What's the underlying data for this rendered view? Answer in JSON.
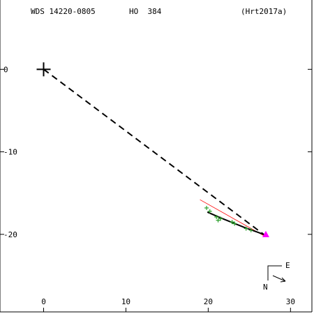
{
  "header": {
    "wds": "WDS 14220-0805",
    "discoverer": "HO  384",
    "reference": "(Hrt2017a)"
  },
  "chart_data": {
    "type": "scatter",
    "title": "",
    "xlabel": "",
    "ylabel": "",
    "xlim": [
      -5.3,
      32.6
    ],
    "ylim": [
      -29.4,
      8.4
    ],
    "x_ticks": [
      0,
      10,
      20,
      30
    ],
    "y_ticks": [
      0,
      -10,
      -20
    ],
    "x_tick_labels": [
      "0",
      "10",
      "20",
      "30"
    ],
    "y_tick_labels": [
      "0",
      "-10",
      "-20"
    ],
    "grid": false,
    "primary": {
      "x": 0,
      "y": 0
    },
    "orbit_path": [
      [
        19.9,
        -17.3
      ],
      [
        21.5,
        -18.0
      ],
      [
        23.0,
        -18.6
      ],
      [
        24.5,
        -19.2
      ],
      [
        25.9,
        -19.7
      ],
      [
        27.0,
        -20.1
      ]
    ],
    "observations": [
      [
        19.8,
        -16.8
      ],
      [
        20.2,
        -17.2
      ],
      [
        21.0,
        -17.9
      ],
      [
        21.2,
        -18.3
      ],
      [
        21.5,
        -18.1
      ],
      [
        22.9,
        -18.5
      ],
      [
        23.2,
        -18.7
      ],
      [
        24.6,
        -19.3
      ],
      [
        25.2,
        -19.5
      ]
    ],
    "current_position": {
      "x": 27.0,
      "y": -20.0
    },
    "node_line": [
      [
        0,
        0
      ],
      [
        27.0,
        -20.2
      ]
    ],
    "red_line": [
      [
        19.0,
        -15.8
      ],
      [
        27.0,
        -20.3
      ]
    ],
    "orientation": {
      "east_label": "E",
      "north_label": "N"
    },
    "colors": {
      "axis": "#000000",
      "node_line": "#000000",
      "orbit": "#000000",
      "observation": "#2ca02c",
      "red_line": "#ff0000",
      "current": "#ff00ff"
    }
  }
}
